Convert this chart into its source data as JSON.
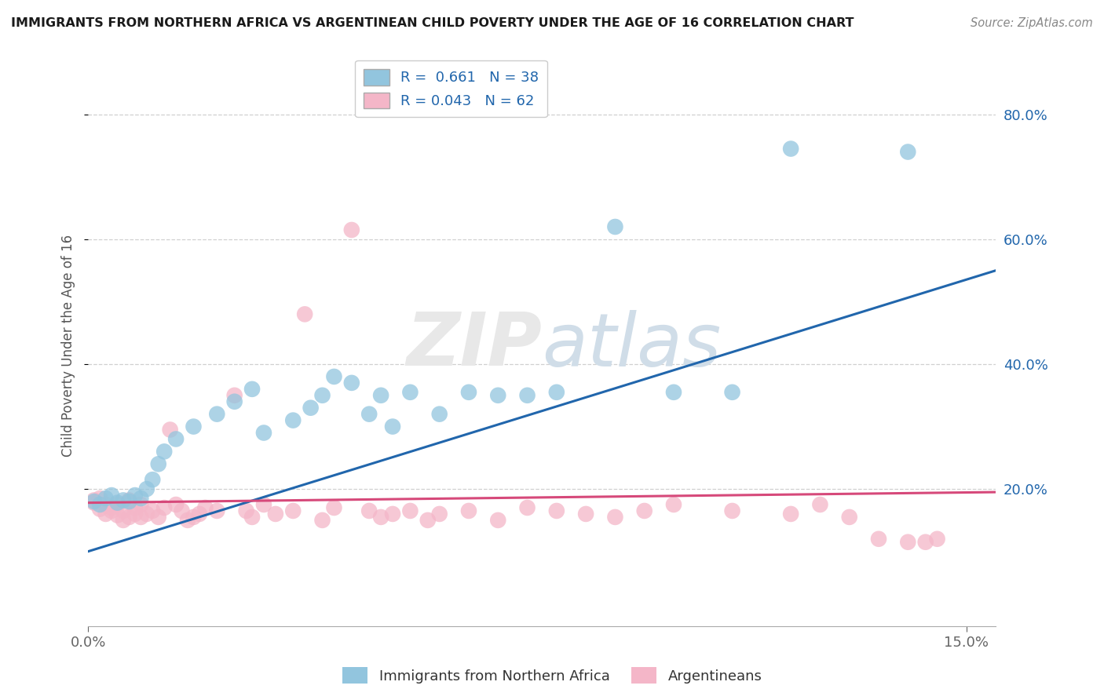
{
  "title": "IMMIGRANTS FROM NORTHERN AFRICA VS ARGENTINEAN CHILD POVERTY UNDER THE AGE OF 16 CORRELATION CHART",
  "source": "Source: ZipAtlas.com",
  "ylabel": "Child Poverty Under the Age of 16",
  "xlim": [
    0.0,
    0.155
  ],
  "ylim": [
    -0.02,
    0.88
  ],
  "xtick_positions": [
    0.0,
    0.15
  ],
  "xticklabels": [
    "0.0%",
    "15.0%"
  ],
  "ytick_positions": [
    0.2,
    0.4,
    0.6,
    0.8
  ],
  "yticklabels": [
    "20.0%",
    "40.0%",
    "60.0%",
    "80.0%"
  ],
  "watermark": "ZIPatlas",
  "blue_R": 0.661,
  "blue_N": 38,
  "pink_R": 0.043,
  "pink_N": 62,
  "blue_color": "#92c5de",
  "pink_color": "#f4b6c8",
  "blue_line_color": "#2166ac",
  "pink_line_color": "#d6497a",
  "legend_label_blue": "Immigrants from Northern Africa",
  "legend_label_pink": "Argentineans",
  "background_color": "#ffffff",
  "grid_color": "#d0d0d0",
  "blue_x": [
    0.001,
    0.002,
    0.003,
    0.004,
    0.005,
    0.006,
    0.007,
    0.008,
    0.009,
    0.01,
    0.011,
    0.012,
    0.013,
    0.015,
    0.018,
    0.022,
    0.025,
    0.028,
    0.03,
    0.035,
    0.038,
    0.04,
    0.042,
    0.045,
    0.048,
    0.05,
    0.052,
    0.055,
    0.06,
    0.065,
    0.07,
    0.075,
    0.08,
    0.09,
    0.1,
    0.11,
    0.12,
    0.14
  ],
  "blue_y": [
    0.18,
    0.175,
    0.185,
    0.19,
    0.178,
    0.182,
    0.18,
    0.19,
    0.185,
    0.2,
    0.215,
    0.24,
    0.26,
    0.28,
    0.3,
    0.32,
    0.34,
    0.36,
    0.29,
    0.31,
    0.33,
    0.35,
    0.38,
    0.37,
    0.32,
    0.35,
    0.3,
    0.355,
    0.32,
    0.355,
    0.35,
    0.35,
    0.355,
    0.62,
    0.355,
    0.355,
    0.745,
    0.74
  ],
  "pink_x": [
    0.001,
    0.001,
    0.002,
    0.002,
    0.003,
    0.003,
    0.004,
    0.004,
    0.005,
    0.005,
    0.006,
    0.006,
    0.007,
    0.007,
    0.008,
    0.008,
    0.009,
    0.009,
    0.01,
    0.011,
    0.012,
    0.013,
    0.014,
    0.015,
    0.016,
    0.017,
    0.018,
    0.019,
    0.02,
    0.022,
    0.025,
    0.027,
    0.028,
    0.03,
    0.032,
    0.035,
    0.037,
    0.04,
    0.042,
    0.045,
    0.048,
    0.05,
    0.052,
    0.055,
    0.058,
    0.06,
    0.065,
    0.07,
    0.075,
    0.08,
    0.085,
    0.09,
    0.095,
    0.1,
    0.11,
    0.12,
    0.125,
    0.13,
    0.135,
    0.14,
    0.143,
    0.145
  ],
  "pink_y": [
    0.178,
    0.182,
    0.168,
    0.185,
    0.16,
    0.175,
    0.17,
    0.165,
    0.158,
    0.175,
    0.15,
    0.165,
    0.155,
    0.182,
    0.16,
    0.17,
    0.155,
    0.175,
    0.16,
    0.165,
    0.155,
    0.17,
    0.295,
    0.175,
    0.165,
    0.15,
    0.155,
    0.16,
    0.17,
    0.165,
    0.35,
    0.165,
    0.155,
    0.175,
    0.16,
    0.165,
    0.48,
    0.15,
    0.17,
    0.615,
    0.165,
    0.155,
    0.16,
    0.165,
    0.15,
    0.16,
    0.165,
    0.15,
    0.17,
    0.165,
    0.16,
    0.155,
    0.165,
    0.175,
    0.165,
    0.16,
    0.175,
    0.155,
    0.12,
    0.115,
    0.115,
    0.12
  ],
  "blue_line_x0": 0.0,
  "blue_line_x1": 0.155,
  "blue_line_y0": 0.1,
  "blue_line_y1": 0.55,
  "pink_line_x0": 0.0,
  "pink_line_x1": 0.155,
  "pink_line_y0": 0.178,
  "pink_line_y1": 0.195
}
